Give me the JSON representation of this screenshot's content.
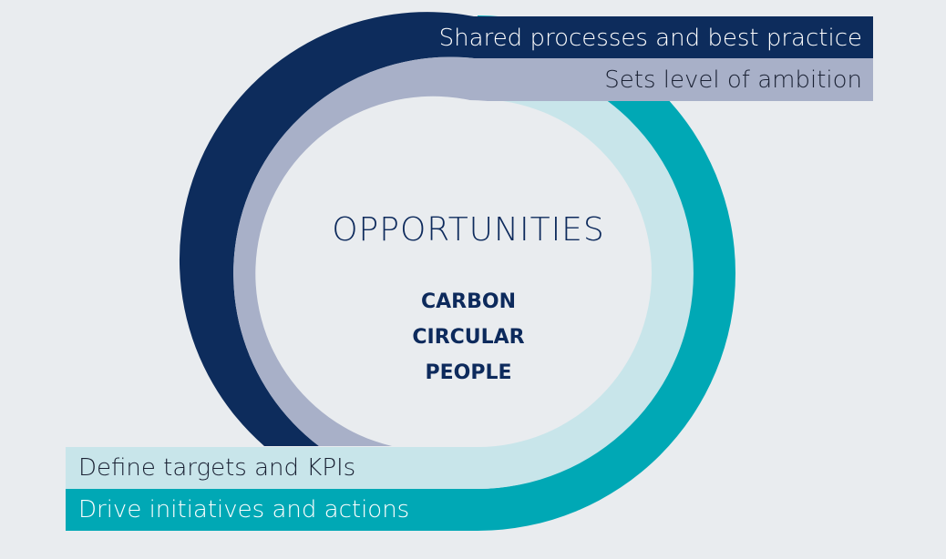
{
  "colors": {
    "background": "#e9ecef",
    "navy": "#0d2c5c",
    "lavender": "#a8b0c8",
    "light_teal": "#c8e5ea",
    "teal": "#00a8b5",
    "center_fill": "#e9ecef",
    "center_text": "#0d2a5c"
  },
  "bands": {
    "shared": "Shared processes and best practice",
    "sets": "Sets level of ambition",
    "define": "Define targets and KPIs",
    "drive": "Drive initiatives and actions"
  },
  "center": {
    "title": "OPPORTUNITIES",
    "items": [
      "CARBON",
      "CIRCULAR",
      "PEOPLE"
    ]
  }
}
